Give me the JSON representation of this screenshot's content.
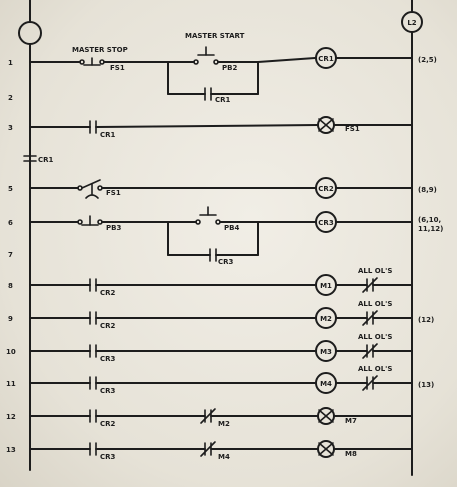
{
  "power": {
    "left": "",
    "right": "L2"
  },
  "top_labels": {
    "master_stop": "MASTER STOP",
    "master_start": "MASTER START"
  },
  "side_label": "CR1",
  "rungs": [
    {
      "num": "1",
      "contact1": "FS1",
      "contact2": "PB2",
      "branch": "CR1",
      "coil": "CR1",
      "ref": "(2,5)"
    },
    {
      "num": "2"
    },
    {
      "num": "3",
      "contact": "CR1",
      "lamp": "FS1"
    },
    {
      "num": "5",
      "contact": "FS1",
      "coil": "CR2",
      "ref": "(8,9)"
    },
    {
      "num": "6",
      "contact1": "PB3",
      "contact2": "PB4",
      "branch": "CR3",
      "coil": "CR3",
      "ref": "(6,10,",
      "ref2": "11,12)"
    },
    {
      "num": "7"
    },
    {
      "num": "8",
      "contact": "CR2",
      "coil": "M1",
      "note": "ALL OL'S"
    },
    {
      "num": "9",
      "contact": "CR2",
      "coil": "M2",
      "note": "ALL OL'S",
      "ref": "(12)"
    },
    {
      "num": "10",
      "contact": "CR3",
      "coil": "M3",
      "note": "ALL OL'S"
    },
    {
      "num": "11",
      "contact": "CR3",
      "coil": "M4",
      "note": "ALL OL'S",
      "ref": "(13)"
    },
    {
      "num": "12",
      "contact": "CR2",
      "contact2": "M2",
      "lamp": "M7"
    },
    {
      "num": "13",
      "contact": "CR3",
      "contact2": "M4",
      "lamp": "M8"
    }
  ]
}
